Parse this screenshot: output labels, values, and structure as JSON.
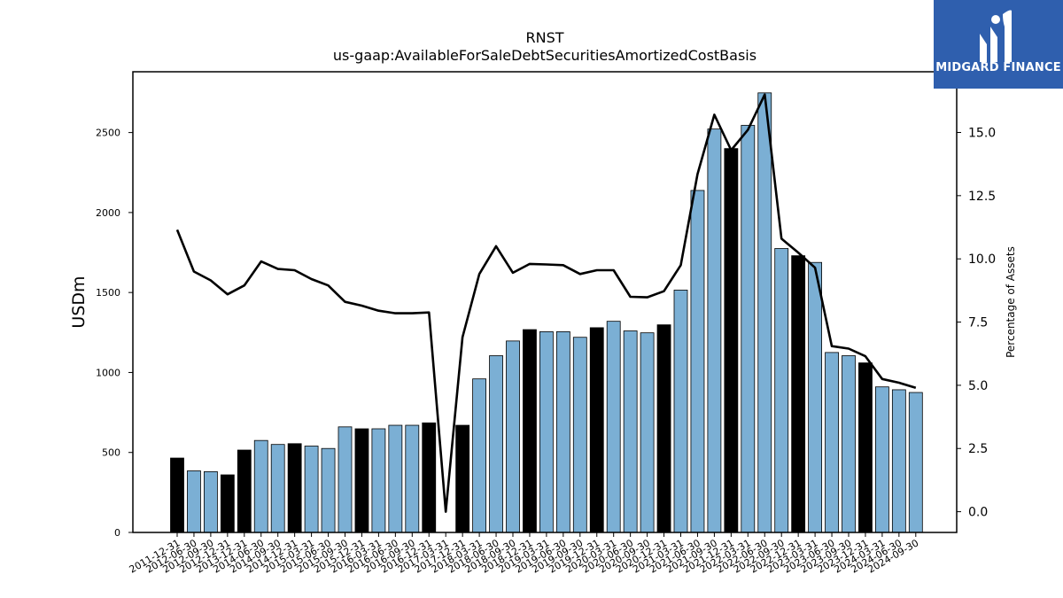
{
  "chart_data": {
    "type": "bar",
    "title": "RNST",
    "subtitle": "us-gaap:AvailableForSaleDebtSecuritiesAmortizedCostBasis",
    "ylabel": "USDm",
    "y2label": "Percentage of Assets",
    "ylim": [
      0,
      2880
    ],
    "y2lim": [
      -0.82,
      17.4
    ],
    "yticks": [
      0,
      500,
      1000,
      1500,
      2000,
      2500
    ],
    "y2ticks": [
      "0.0",
      "2.5",
      "5.0",
      "7.5",
      "10.0",
      "12.5",
      "15.0"
    ],
    "grid": false,
    "categories": [
      "2011-12-31",
      "2012-06-30",
      "2012-09-30",
      "2012-12-31",
      "2013-12-31",
      "2014-06-30",
      "2014-09-30",
      "2014-12-31",
      "2015-03-31",
      "2015-06-30",
      "2015-09-30",
      "2015-12-31",
      "2016-03-31",
      "2016-06-30",
      "2016-09-30",
      "2016-12-31",
      "2017-03-31",
      "2017-12-31",
      "2018-03-31",
      "2018-06-30",
      "2018-09-30",
      "2018-12-31",
      "2019-03-31",
      "2019-06-30",
      "2019-09-30",
      "2019-12-31",
      "2020-03-31",
      "2020-06-30",
      "2020-09-30",
      "2020-12-31",
      "2021-03-31",
      "2021-06-30",
      "2021-09-30",
      "2021-12-31",
      "2022-03-31",
      "2022-06-30",
      "2022-09-30",
      "2022-12-31",
      "2023-03-31",
      "2023-06-30",
      "2023-09-30",
      "2023-12-31",
      "2024-03-31",
      "2024-06-30",
      "2024-09-30"
    ],
    "series": [
      {
        "type": "bar",
        "values": [
          465,
          385,
          380,
          360,
          515,
          575,
          550,
          555,
          540,
          525,
          660,
          648,
          648,
          670,
          670,
          685,
          null,
          670,
          960,
          1105,
          1197,
          1268,
          1255,
          1255,
          1220,
          1280,
          1320,
          1260,
          1248,
          1298,
          1515,
          2138,
          2522,
          2400,
          2545,
          2748,
          1775,
          1730,
          1688,
          1125,
          1105,
          1060,
          910,
          892,
          875
        ],
        "colors": [
          "#000000",
          "#7bafd4",
          "#7bafd4",
          "#000000",
          "#000000",
          "#7bafd4",
          "#7bafd4",
          "#000000",
          "#7bafd4",
          "#7bafd4",
          "#7bafd4",
          "#000000",
          "#7bafd4",
          "#7bafd4",
          "#7bafd4",
          "#000000",
          "#7bafd4",
          "#000000",
          "#7bafd4",
          "#7bafd4",
          "#7bafd4",
          "#000000",
          "#7bafd4",
          "#7bafd4",
          "#7bafd4",
          "#000000",
          "#7bafd4",
          "#7bafd4",
          "#7bafd4",
          "#000000",
          "#7bafd4",
          "#7bafd4",
          "#7bafd4",
          "#000000",
          "#7bafd4",
          "#7bafd4",
          "#7bafd4",
          "#000000",
          "#7bafd4",
          "#7bafd4",
          "#7bafd4",
          "#000000",
          "#7bafd4",
          "#7bafd4",
          "#7bafd4"
        ]
      },
      {
        "type": "line",
        "axis": "right",
        "color": "#000000",
        "values": [
          11.15,
          9.5,
          9.15,
          8.6,
          8.95,
          9.9,
          9.6,
          9.55,
          9.2,
          8.95,
          8.3,
          8.15,
          7.95,
          7.85,
          7.85,
          7.88,
          0.0,
          6.9,
          9.4,
          10.5,
          9.45,
          9.8,
          9.78,
          9.75,
          9.4,
          9.55,
          9.55,
          8.5,
          8.48,
          8.72,
          9.75,
          13.35,
          15.7,
          14.3,
          15.1,
          16.5,
          10.8,
          10.25,
          9.65,
          6.55,
          6.45,
          6.15,
          5.25,
          5.1,
          4.9
        ]
      }
    ]
  },
  "logo": {
    "text": "MIDGARD FINANCE"
  },
  "colors": {
    "accent": "#2f5fae",
    "bar_light": "#7bafd4",
    "bar_dark": "#000000"
  }
}
